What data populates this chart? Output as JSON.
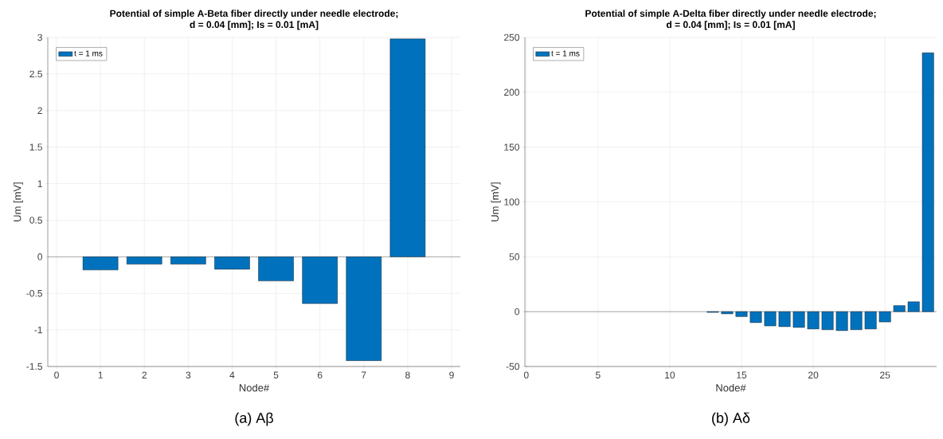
{
  "chart_data": [
    {
      "type": "bar",
      "title": "Potential of simple A-Beta fiber directly under needle electrode;",
      "subtitle": "d = 0.04 [mm]; Is = 0.01 [mA]",
      "xlabel": "Node#",
      "ylabel": "Um [mV]",
      "x": [
        1,
        2,
        3,
        4,
        5,
        6,
        7,
        8
      ],
      "series": [
        {
          "name": "t = 1 ms",
          "color": "#0072bd",
          "values": [
            -0.18,
            -0.1,
            -0.1,
            -0.17,
            -0.33,
            -0.64,
            -1.42,
            2.98
          ]
        }
      ],
      "xlim": [
        -0.2,
        9.2
      ],
      "ylim": [
        -1.5,
        3
      ],
      "xticks": [
        0,
        1,
        2,
        3,
        4,
        5,
        6,
        7,
        8,
        9
      ],
      "yticks": [
        -1.5,
        -1,
        -0.5,
        0,
        0.5,
        1,
        1.5,
        2,
        2.5,
        3
      ],
      "grid": true,
      "legend": "top left",
      "annotations": [
        "(a) Aβ"
      ]
    },
    {
      "type": "bar",
      "title": "Potential of simple A-Delta fiber directly under needle electrode;",
      "subtitle": "d = 0.04 [mm]; Is = 0.01 [mA]",
      "xlabel": "Node#",
      "ylabel": "Um [mV]",
      "x": [
        13,
        14,
        15,
        16,
        17,
        18,
        19,
        20,
        21,
        22,
        23,
        24,
        25,
        26,
        27,
        28
      ],
      "series": [
        {
          "name": "t = 1 ms",
          "color": "#0072bd",
          "values": [
            -0.7,
            -2,
            -4.5,
            -10,
            -13,
            -13.7,
            -14.4,
            -15.8,
            -16.5,
            -17.3,
            -16.5,
            -15.8,
            -9.4,
            5.5,
            9,
            236
          ]
        }
      ],
      "xlim": [
        -0.1,
        28.6
      ],
      "ylim": [
        -50,
        250
      ],
      "xticks": [
        0,
        5,
        10,
        15,
        20,
        25
      ],
      "yticks": [
        -50,
        0,
        50,
        100,
        150,
        200,
        250
      ],
      "grid": true,
      "legend": "top left",
      "annotations": [
        "(b) Aδ"
      ]
    }
  ]
}
